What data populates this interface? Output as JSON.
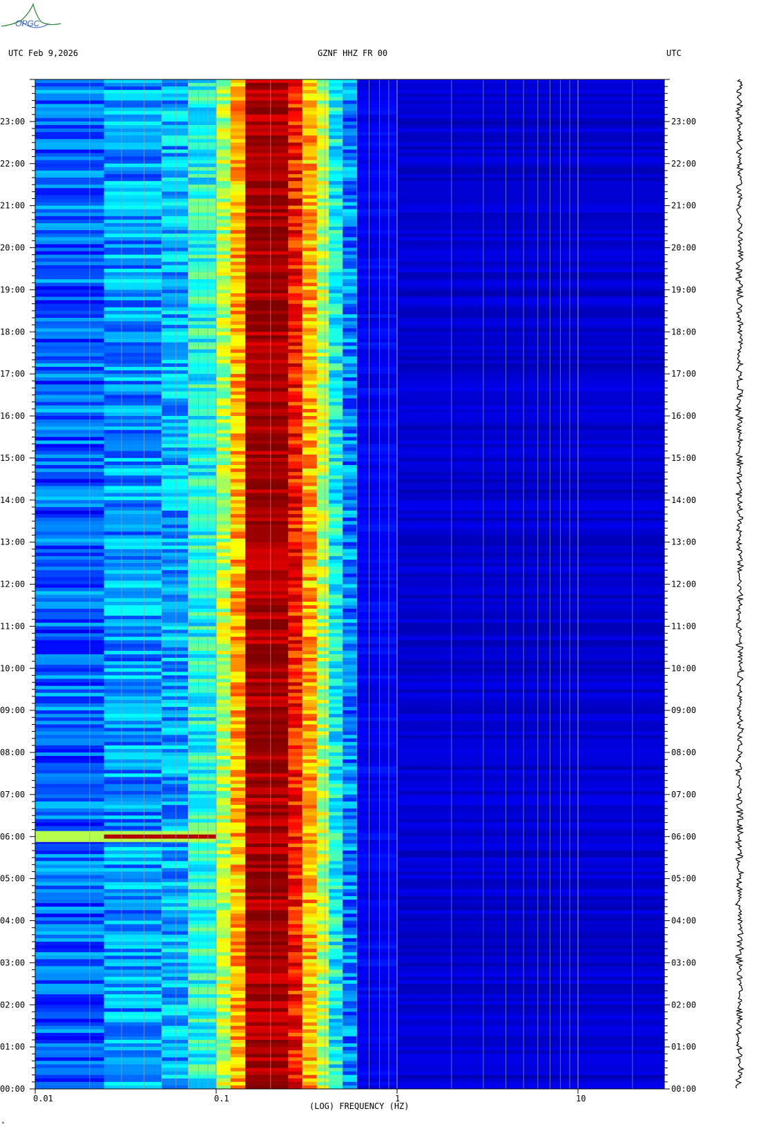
{
  "header": {
    "left": "UTC  Feb 9,2026",
    "center": "GZNF HHZ FR 00",
    "right": "UTC"
  },
  "logo": {
    "text": "OPGC"
  },
  "stamp": "*",
  "colors": {
    "background": "#00008c",
    "gridline": "#a0a0a0",
    "tick": "#000000"
  },
  "chart_data": {
    "type": "heatmap",
    "title": "GZNF HHZ FR 00",
    "xlabel": "(LOG) FREQUENCY (HZ)",
    "ylabel": "UTC",
    "x_scale": "log",
    "xlim": [
      0.01,
      30
    ],
    "x_ticks": [
      {
        "value": 0.01,
        "label": "0.01"
      },
      {
        "value": 0.1,
        "label": "0.1"
      },
      {
        "value": 1,
        "label": "1"
      },
      {
        "value": 10,
        "label": "10"
      }
    ],
    "ylim_hours": [
      0,
      24
    ],
    "y_ticks": [
      "00:00",
      "01:00",
      "02:00",
      "03:00",
      "04:00",
      "05:00",
      "06:00",
      "07:00",
      "08:00",
      "09:00",
      "10:00",
      "11:00",
      "12:00",
      "13:00",
      "14:00",
      "15:00",
      "16:00",
      "17:00",
      "18:00",
      "19:00",
      "20:00",
      "21:00",
      "22:00",
      "23:00"
    ],
    "colormap": "jet",
    "frequency_bands": [
      {
        "f_min": 0.01,
        "f_max": 0.024,
        "intensity": 0.22
      },
      {
        "f_min": 0.024,
        "f_max": 0.05,
        "intensity": 0.28
      },
      {
        "f_min": 0.05,
        "f_max": 0.07,
        "intensity": 0.3
      },
      {
        "f_min": 0.07,
        "f_max": 0.1,
        "intensity": 0.4
      },
      {
        "f_min": 0.1,
        "f_max": 0.12,
        "intensity": 0.55
      },
      {
        "f_min": 0.12,
        "f_max": 0.145,
        "intensity": 0.7
      },
      {
        "f_min": 0.145,
        "f_max": 0.25,
        "intensity": 0.96
      },
      {
        "f_min": 0.25,
        "f_max": 0.3,
        "intensity": 0.85
      },
      {
        "f_min": 0.3,
        "f_max": 0.36,
        "intensity": 0.7
      },
      {
        "f_min": 0.36,
        "f_max": 0.42,
        "intensity": 0.55
      },
      {
        "f_min": 0.42,
        "f_max": 0.5,
        "intensity": 0.38
      },
      {
        "f_min": 0.5,
        "f_max": 0.6,
        "intensity": 0.25
      },
      {
        "f_min": 0.6,
        "f_max": 1.0,
        "intensity": 0.12
      },
      {
        "f_min": 1.0,
        "f_max": 30,
        "intensity": 0.08
      }
    ],
    "events": [
      {
        "time": "06:00",
        "f_min": 0.01,
        "f_max": 0.1,
        "intensity": 0.95
      }
    ],
    "colorbar": "none",
    "side_trace": "seismic amplitude",
    "grid": true
  }
}
